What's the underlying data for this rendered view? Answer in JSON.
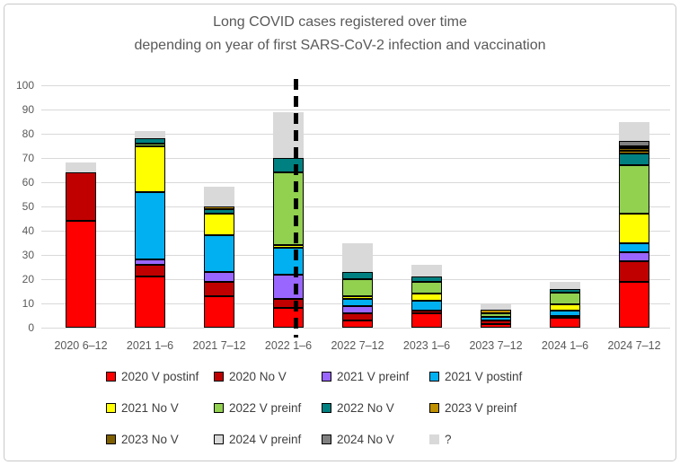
{
  "chart_data": {
    "type": "bar",
    "stacked": true,
    "title_lines": [
      "Long COVID cases registered over time",
      "depending on year of first SARS-CoV-2 infection and vaccination"
    ],
    "categories": [
      "2020 6–12",
      "2021 1–6",
      "2021 7–12",
      "2022 1–6",
      "2022 7–12",
      "2023 1–6",
      "2023 7–12",
      "2024 1–6",
      "2024 7–12"
    ],
    "series": [
      {
        "name": "2020 V postinf",
        "color": "#FF0000",
        "border": true,
        "values": [
          44,
          21,
          13,
          8,
          3,
          6,
          1.5,
          4,
          19
        ]
      },
      {
        "name": "2020 No V",
        "color": "#C00000",
        "border": true,
        "values": [
          20,
          5,
          6,
          4,
          3,
          1,
          1.5,
          1,
          8.5
        ]
      },
      {
        "name": "2021 V preinf",
        "color": "#9966FF",
        "border": true,
        "values": [
          0,
          2,
          4,
          10,
          3,
          0,
          0,
          0,
          3.5
        ]
      },
      {
        "name": "2021 V postinf",
        "color": "#00B0F0",
        "border": true,
        "values": [
          0,
          28,
          15,
          11,
          3,
          4,
          1.5,
          2,
          4
        ]
      },
      {
        "name": "2021 No V",
        "color": "#FFFF00",
        "border": true,
        "values": [
          0,
          19,
          9,
          1,
          1,
          3,
          0,
          2.5,
          12
        ]
      },
      {
        "name": "2022 V preinf",
        "color": "#92D050",
        "border": true,
        "values": [
          0,
          1,
          0,
          30,
          7,
          5,
          1.5,
          5,
          20
        ]
      },
      {
        "name": "2022 No V",
        "color": "#008080",
        "border": true,
        "values": [
          0,
          2,
          2,
          6,
          3,
          2,
          0,
          1.5,
          5
        ]
      },
      {
        "name": "2023 V preinf",
        "color": "#BF9000",
        "border": true,
        "values": [
          0,
          0,
          1,
          0,
          0,
          0,
          1.5,
          0,
          1
        ]
      },
      {
        "name": "2023 No V",
        "color": "#7F6000",
        "border": true,
        "values": [
          0,
          0,
          0,
          0,
          0,
          0,
          0,
          0,
          1
        ]
      },
      {
        "name": "2024 V preinf",
        "color": "#D9D9D9",
        "border": true,
        "values": [
          0,
          0,
          0,
          0,
          0,
          0,
          0,
          0,
          1
        ]
      },
      {
        "name": "2024 No V",
        "color": "#808080",
        "border": true,
        "values": [
          0,
          0,
          0,
          0,
          0,
          0,
          0,
          0,
          2
        ]
      },
      {
        "name": "?",
        "color": "#D9D9D9",
        "border": false,
        "values": [
          4,
          3,
          8,
          19,
          12,
          5,
          2,
          3,
          8
        ]
      }
    ],
    "ylim": [
      0,
      100
    ],
    "ytick_step": 10,
    "yticks": [
      "0",
      "10",
      "20",
      "30",
      "40",
      "50",
      "60",
      "70",
      "80",
      "90",
      "100"
    ],
    "separator_after_category_index": 3,
    "legend_position": "bottom",
    "legend_columns": 4,
    "grid": true,
    "colors_meta": {
      "title_text": "#595959",
      "axis_text": "#595959",
      "legend_text": "#3F3F3F",
      "gridline": "#D9D9D9",
      "separator": "#000000",
      "frame_border": "#C9C9C9"
    }
  }
}
